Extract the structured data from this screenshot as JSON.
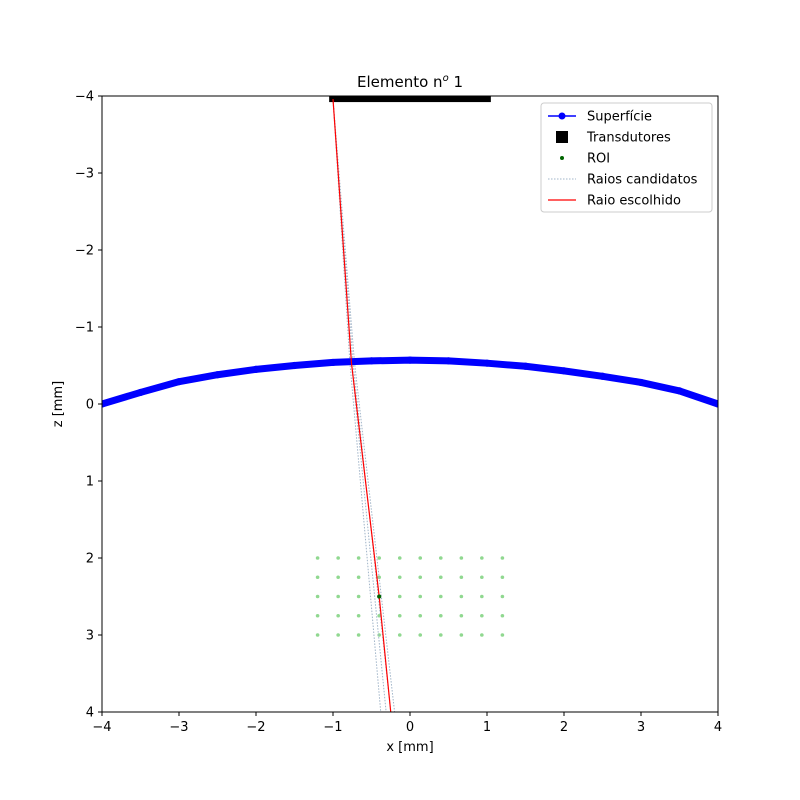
{
  "chart_data": {
    "type": "scatter",
    "title": "Elemento n",
    "title_superscript": "o",
    "title_suffix": " 1",
    "xlabel": "x [mm]",
    "ylabel": "z [mm]",
    "xlim": [
      -4,
      4
    ],
    "ylim": [
      4,
      -4
    ],
    "y_inverted": true,
    "grid": false,
    "legend_placement": "upper right",
    "x_ticks": [
      "−4",
      "−3",
      "−2",
      "−1",
      "0",
      "1",
      "2",
      "3",
      "4"
    ],
    "y_ticks": [
      "−4",
      "−3",
      "−2",
      "−1",
      "0",
      "1",
      "2",
      "3",
      "4"
    ],
    "x_tick_values": [
      -4,
      -3,
      -2,
      -1,
      0,
      1,
      2,
      3,
      4
    ],
    "y_tick_values": [
      -4,
      -3,
      -2,
      -1,
      0,
      1,
      2,
      3,
      4
    ],
    "series": [
      {
        "name": "Superfície",
        "kind": "line-markers",
        "color": "#0000ff",
        "x": [
          -4.0,
          -3.5,
          -3.0,
          -2.5,
          -2.0,
          -1.5,
          -1.0,
          -0.5,
          0.0,
          0.5,
          1.0,
          1.5,
          2.0,
          2.5,
          3.0,
          3.5,
          4.0
        ],
        "z": [
          0.0,
          -0.15,
          -0.29,
          -0.38,
          -0.45,
          -0.5,
          -0.54,
          -0.56,
          -0.57,
          -0.56,
          -0.53,
          -0.49,
          -0.43,
          -0.36,
          -0.28,
          -0.17,
          0.0
        ]
      },
      {
        "name": "Transdutores",
        "kind": "square-markers",
        "color": "#000000",
        "x_start": -1.05,
        "x_end": 1.05,
        "z": -3.96
      },
      {
        "name": "ROI",
        "kind": "dots",
        "color": "#006400",
        "faded_color": "#90d890",
        "x": [
          -1.2,
          -0.933,
          -0.667,
          -0.4,
          -0.133,
          0.133,
          0.4,
          0.667,
          0.933,
          1.2
        ],
        "z": [
          2.0,
          2.25,
          2.5,
          2.75,
          3.0
        ],
        "highlighted": {
          "x": -0.4,
          "z": 2.5
        }
      },
      {
        "name": "Raios candidatos",
        "kind": "dotted-lines",
        "color": "#a0b4c8",
        "rays": [
          [
            [
              -1.0,
              -3.96
            ],
            [
              -0.76,
              -0.53
            ],
            [
              -0.31,
              4.0
            ]
          ],
          [
            [
              -1.0,
              -3.96
            ],
            [
              -0.78,
              -0.53
            ],
            [
              -0.38,
              4.0
            ]
          ],
          [
            [
              -1.0,
              -3.96
            ],
            [
              -0.74,
              -0.53
            ],
            [
              -0.25,
              4.0
            ]
          ],
          [
            [
              -1.0,
              -3.96
            ],
            [
              -0.72,
              -0.53
            ],
            [
              -0.2,
              4.0
            ]
          ]
        ]
      },
      {
        "name": "Raio escolhido",
        "kind": "line",
        "color": "#ff0000",
        "points": [
          [
            -1.0,
            -3.96
          ],
          [
            -0.76,
            -0.53
          ],
          [
            -0.4,
            2.5
          ],
          [
            -0.25,
            4.0
          ]
        ]
      }
    ]
  }
}
